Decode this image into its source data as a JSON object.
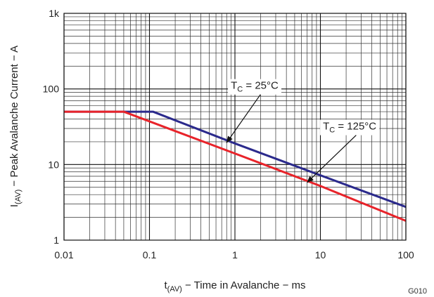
{
  "chart_data": {
    "type": "line",
    "xscale": "log",
    "yscale": "log",
    "xlim": [
      0.01,
      100
    ],
    "ylim": [
      1,
      1000
    ],
    "grid": true,
    "xticks": [
      {
        "value": 0.01,
        "label": "0.01"
      },
      {
        "value": 0.1,
        "label": "0.1"
      },
      {
        "value": 1,
        "label": "1"
      },
      {
        "value": 10,
        "label": "10"
      },
      {
        "value": 100,
        "label": "100"
      }
    ],
    "yticks": [
      {
        "value": 1,
        "label": "1"
      },
      {
        "value": 10,
        "label": "10"
      },
      {
        "value": 100,
        "label": "100"
      },
      {
        "value": 1000,
        "label": "1k"
      }
    ],
    "xlabel": {
      "main": "t",
      "sub": "(AV)",
      "rest": " − Time in Avalanche − ms"
    },
    "ylabel": {
      "main": "I",
      "sub": "(AV)",
      "rest": " − Peak Avalanche Current − A"
    },
    "series": [
      {
        "color": "#2b2a8c",
        "points": [
          [
            0.01,
            50
          ],
          [
            0.11,
            50
          ],
          [
            1,
            19
          ],
          [
            10,
            7.2
          ],
          [
            100,
            2.75
          ]
        ]
      },
      {
        "color": "#e8232a",
        "points": [
          [
            0.01,
            50
          ],
          [
            0.05,
            50
          ],
          [
            1,
            14
          ],
          [
            10,
            5.2
          ],
          [
            100,
            1.8
          ]
        ]
      }
    ],
    "annotations": [
      {
        "main": "T",
        "sub": "C",
        "rest": " = 25°C",
        "anchor": [
          1.7,
          100
        ],
        "arrow_to": [
          0.8,
          19.5
        ]
      },
      {
        "main": "T",
        "sub": "C",
        "rest": " = 125°C",
        "anchor": [
          22,
          29
        ],
        "arrow_to": [
          7,
          5.8
        ]
      }
    ],
    "figure_code": "G010"
  }
}
